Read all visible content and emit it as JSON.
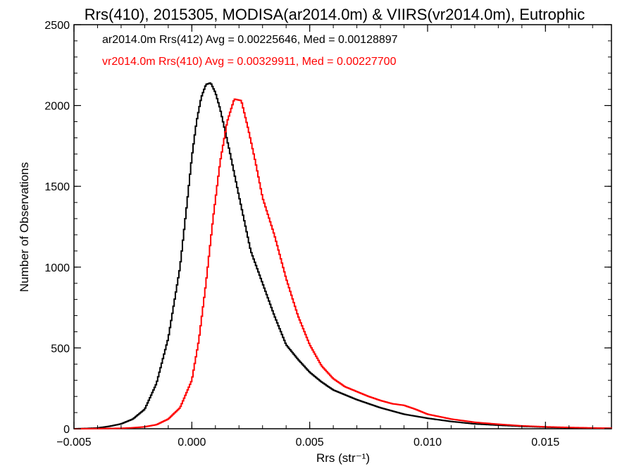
{
  "chart_data": {
    "type": "line",
    "title": "Rrs(410), 2015305, MODISA(ar2014.0m) & VIIRS(vr2014.0m), Eutrophic",
    "xlabel": "Rrs (str⁻¹)",
    "ylabel": "Number of Observations",
    "xlim": [
      -0.005,
      0.0178
    ],
    "ylim": [
      0,
      2500
    ],
    "x_ticks": [
      -0.005,
      0.0,
      0.005,
      0.01,
      0.015
    ],
    "x_tick_labels": [
      "−0.005",
      "0.000",
      "0.005",
      "0.010",
      "0.015"
    ],
    "y_ticks": [
      0,
      500,
      1000,
      1500,
      2000,
      2500
    ],
    "y_tick_labels": [
      "0",
      "500",
      "1000",
      "1500",
      "2000",
      "2500"
    ],
    "grid": false,
    "legend_position": "top-left",
    "series": [
      {
        "name": "ar2014.0m Rrs(412) Avg = 0.00225646, Med = 0.00128897",
        "color": "#000000",
        "x": [
          -0.005,
          -0.0045,
          -0.004,
          -0.0035,
          -0.003,
          -0.0025,
          -0.002,
          -0.0015,
          -0.001,
          -0.0005,
          -0.0002,
          0.0,
          0.0002,
          0.0004,
          0.0006,
          0.0008,
          0.001,
          0.0012,
          0.0014,
          0.0016,
          0.0018,
          0.002,
          0.0025,
          0.003,
          0.0035,
          0.004,
          0.0045,
          0.005,
          0.0055,
          0.006,
          0.007,
          0.008,
          0.009,
          0.01,
          0.011,
          0.012,
          0.013,
          0.014,
          0.015,
          0.016,
          0.017,
          0.0178
        ],
        "y": [
          0,
          2,
          5,
          15,
          30,
          60,
          120,
          280,
          560,
          1000,
          1400,
          1680,
          1900,
          2050,
          2130,
          2140,
          2080,
          1980,
          1850,
          1720,
          1580,
          1440,
          1100,
          900,
          700,
          520,
          430,
          350,
          290,
          240,
          180,
          130,
          90,
          65,
          45,
          30,
          22,
          15,
          10,
          6,
          4,
          3
        ]
      },
      {
        "name": "vr2014.0m Rrs(410) Avg = 0.00329911, Med = 0.00227700",
        "color": "#ff0000",
        "x": [
          -0.005,
          -0.004,
          -0.003,
          -0.0025,
          -0.002,
          -0.0015,
          -0.001,
          -0.0005,
          0.0,
          0.0003,
          0.0006,
          0.0009,
          0.0012,
          0.0015,
          0.0018,
          0.0021,
          0.0024,
          0.0027,
          0.003,
          0.0035,
          0.004,
          0.0045,
          0.005,
          0.0055,
          0.006,
          0.0065,
          0.007,
          0.0075,
          0.008,
          0.0085,
          0.009,
          0.0095,
          0.01,
          0.011,
          0.012,
          0.013,
          0.014,
          0.015,
          0.016,
          0.017,
          0.0178
        ],
        "y": [
          0,
          1,
          3,
          6,
          12,
          25,
          60,
          130,
          300,
          550,
          900,
          1300,
          1650,
          1900,
          2040,
          2030,
          1850,
          1650,
          1430,
          1200,
          930,
          700,
          520,
          390,
          310,
          260,
          230,
          200,
          175,
          155,
          145,
          120,
          90,
          60,
          40,
          28,
          18,
          12,
          8,
          5,
          3
        ]
      }
    ]
  }
}
